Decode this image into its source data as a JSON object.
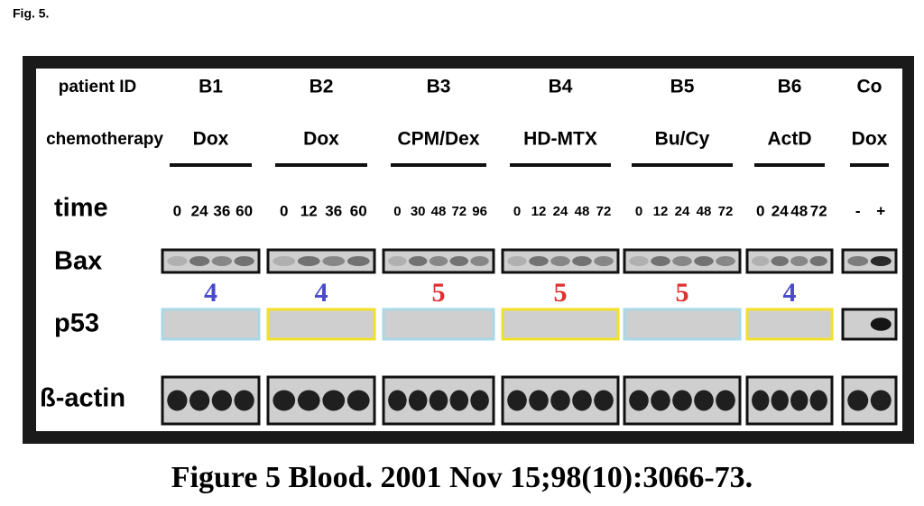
{
  "fig_label": "Fig. 5.",
  "row_labels": {
    "patient_id": "patient ID",
    "chemotherapy": "chemotherapy",
    "time": "time",
    "bax": "Bax",
    "p53": "p53",
    "actin": "ß-actin"
  },
  "patients": [
    {
      "id": "B1",
      "chemo": "Dox",
      "times": [
        0,
        24,
        36,
        60
      ],
      "score": 4
    },
    {
      "id": "B2",
      "chemo": "Dox",
      "times": [
        0,
        12,
        36,
        60
      ],
      "score": 4
    },
    {
      "id": "B3",
      "chemo": "CPM/Dex",
      "times": [
        0,
        30,
        48,
        72,
        96
      ],
      "score": 5
    },
    {
      "id": "B4",
      "chemo": "HD-MTX",
      "times": [
        0,
        12,
        24,
        48,
        72
      ],
      "score": 5
    },
    {
      "id": "B5",
      "chemo": "Bu/Cy",
      "times": [
        0,
        12,
        24,
        48,
        72
      ],
      "score": 5
    },
    {
      "id": "B6",
      "chemo": "ActD",
      "times": [
        0,
        24,
        48,
        72
      ],
      "score": 4
    }
  ],
  "control": {
    "id": "Co",
    "chemo": "Dox",
    "times": [
      "-",
      "+"
    ]
  },
  "caption": "Figure 5 Blood. 2001 Nov 15;98(10):3066-73."
}
